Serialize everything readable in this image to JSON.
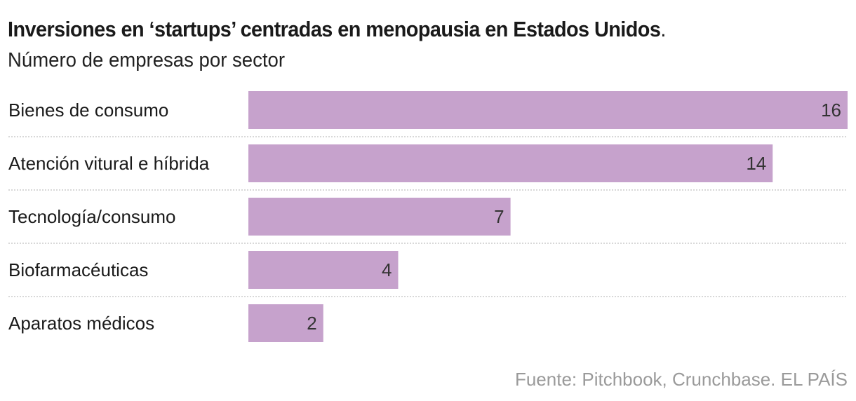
{
  "header": {
    "title": "Inversiones en ‘startups’ centradas en menopausia en Estados Unidos",
    "title_end": ".",
    "subtitle": "Número de empresas por sector"
  },
  "chart_data": {
    "type": "bar",
    "orientation": "horizontal",
    "title": "Inversiones en ‘startups’ centradas en menopausia en Estados Unidos.",
    "subtitle": "Número de empresas por sector",
    "xlabel": "",
    "ylabel": "",
    "categories": [
      "Bienes de consumo",
      "Atención vitural e híbrida",
      "Tecnología/consumo",
      "Biofarmacéuticas",
      "Aparatos médicos"
    ],
    "values": [
      16,
      14,
      7,
      4,
      2
    ],
    "xlim": [
      0,
      16
    ],
    "grid": false,
    "bar_color": "#c6a2cc",
    "separator_color": "#cccccc"
  },
  "footer": {
    "source": "Fuente: Pitchbook, Crunchbase",
    "brand": ". EL PAÍS"
  }
}
